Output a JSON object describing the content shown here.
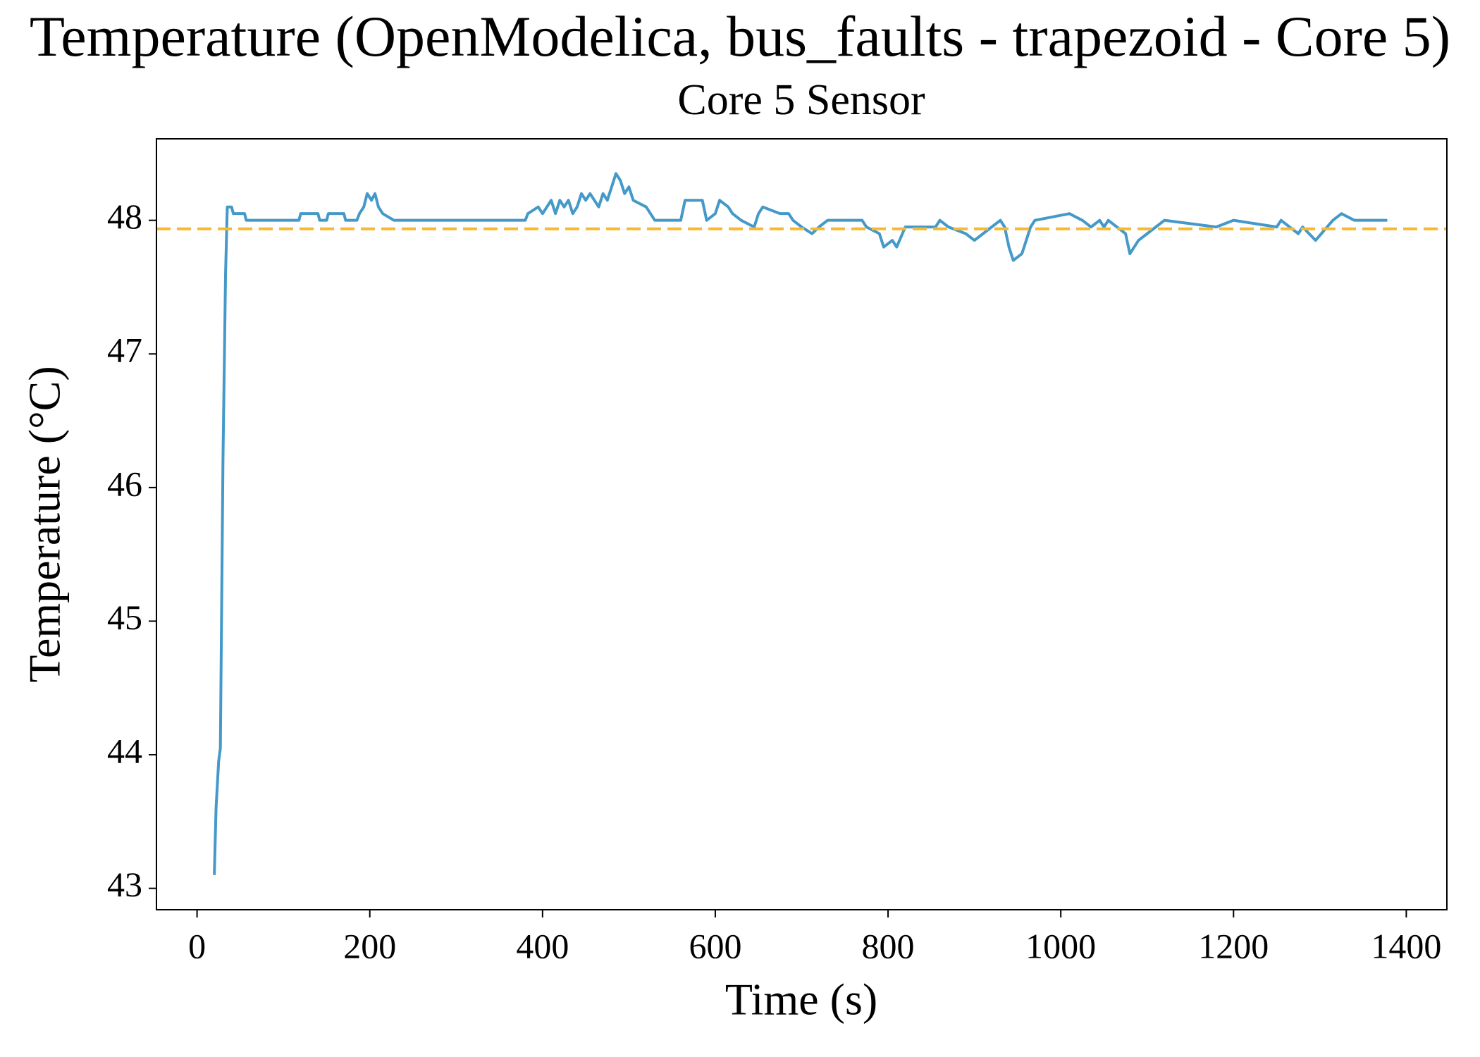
{
  "chart_data": {
    "type": "line",
    "title": "Temperature (OpenModelica, bus_faults - trapezoid - Core 5)",
    "subtitle": "Core 5 Sensor",
    "xlabel": "Time (s)",
    "ylabel": "Temperature (°C)",
    "xlim": [
      -47,
      1447
    ],
    "ylim": [
      42.84,
      48.61
    ],
    "xticks": [
      0,
      200,
      400,
      600,
      800,
      1000,
      1200,
      1400
    ],
    "yticks": [
      43,
      44,
      45,
      46,
      47,
      48
    ],
    "reference_line": {
      "y": 47.936,
      "color": "#f8b82f",
      "dashed": true
    },
    "series": [
      {
        "name": "Core 5 Sensor",
        "color": "#4499c9",
        "x": [
          20,
          22,
          25,
          27,
          30,
          33,
          35,
          40,
          42,
          55,
          57,
          118,
          120,
          140,
          142,
          150,
          152,
          170,
          172,
          185,
          188,
          193,
          197,
          202,
          206,
          210,
          215,
          228,
          380,
          383,
          395,
          400,
          405,
          410,
          415,
          420,
          425,
          430,
          435,
          440,
          445,
          450,
          455,
          460,
          465,
          470,
          475,
          480,
          485,
          490,
          495,
          500,
          505,
          520,
          525,
          530,
          560,
          565,
          585,
          590,
          600,
          605,
          615,
          620,
          630,
          645,
          650,
          655,
          675,
          685,
          690,
          700,
          712,
          720,
          730,
          770,
          775,
          790,
          795,
          805,
          810,
          820,
          855,
          860,
          870,
          890,
          900,
          910,
          920,
          930,
          935,
          940,
          945,
          955,
          965,
          970,
          1010,
          1025,
          1035,
          1045,
          1050,
          1055,
          1075,
          1080,
          1090,
          1100,
          1110,
          1120,
          1180,
          1200,
          1250,
          1255,
          1275,
          1280,
          1295,
          1315,
          1325,
          1340,
          1378
        ],
        "values": [
          43.1,
          43.6,
          43.95,
          44.05,
          46.2,
          47.6,
          48.1,
          48.1,
          48.05,
          48.05,
          48.0,
          48.0,
          48.05,
          48.05,
          48.0,
          48.0,
          48.05,
          48.05,
          48.0,
          48.0,
          48.05,
          48.1,
          48.2,
          48.15,
          48.2,
          48.1,
          48.05,
          48.0,
          48.0,
          48.05,
          48.1,
          48.05,
          48.1,
          48.15,
          48.05,
          48.15,
          48.1,
          48.15,
          48.05,
          48.1,
          48.2,
          48.15,
          48.2,
          48.15,
          48.1,
          48.2,
          48.15,
          48.25,
          48.35,
          48.3,
          48.2,
          48.25,
          48.15,
          48.1,
          48.05,
          48.0,
          48.0,
          48.15,
          48.15,
          48.0,
          48.05,
          48.15,
          48.1,
          48.05,
          48.0,
          47.95,
          48.05,
          48.1,
          48.05,
          48.05,
          48.0,
          47.95,
          47.9,
          47.95,
          48.0,
          48.0,
          47.95,
          47.9,
          47.8,
          47.85,
          47.8,
          47.95,
          47.95,
          48.0,
          47.95,
          47.9,
          47.85,
          47.9,
          47.95,
          48.0,
          47.95,
          47.8,
          47.7,
          47.75,
          47.95,
          48.0,
          48.05,
          48.0,
          47.95,
          48.0,
          47.95,
          48.0,
          47.9,
          47.75,
          47.85,
          47.9,
          47.95,
          48.0,
          47.95,
          48.0,
          47.95,
          48.0,
          47.9,
          47.95,
          47.85,
          48.0,
          48.05,
          48.0,
          48.0
        ]
      }
    ]
  }
}
